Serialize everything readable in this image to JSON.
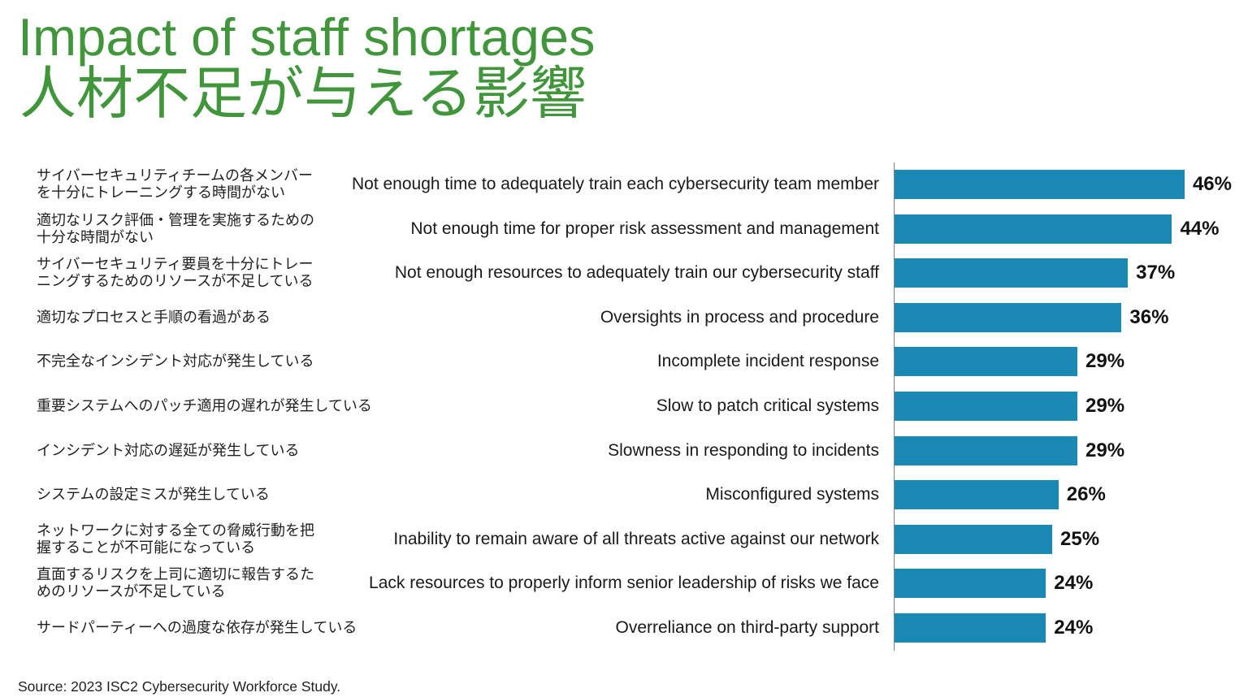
{
  "chart_data": {
    "type": "bar",
    "orientation": "horizontal",
    "title": "Impact of staff shortages",
    "subtitle": "人材不足が与える影響",
    "categories": [
      "Not enough time to adequately train each cybersecurity team member",
      "Not enough time for proper risk assessment and management",
      "Not enough resources to adequately train our cybersecurity staff",
      "Oversights in process and procedure",
      "Incomplete incident response",
      "Slow to patch critical systems",
      "Slowness in responding to incidents",
      "Misconfigured systems",
      "Inability to remain aware of all threats active against our network",
      "Lack resources to properly inform senior leadership of risks we face",
      "Overreliance on third-party support"
    ],
    "categories_ja": [
      [
        "サイバーセキュリティチームの各メンバー",
        "を十分にトレーニングする時間がない"
      ],
      [
        "適切なリスク評価・管理を実施するための",
        "十分な時間がない"
      ],
      [
        "サイバーセキュリティ要員を十分にトレー",
        "ニングするためのリソースが不足している"
      ],
      [
        "適切なプロセスと手順の看過がある"
      ],
      [
        "不完全なインシデント対応が発生している"
      ],
      [
        "重要システムへのパッチ適用の遅れが発生している"
      ],
      [
        "インシデント対応の遅延が発生している"
      ],
      [
        "システムの設定ミスが発生している"
      ],
      [
        "ネットワークに対する全ての脅威行動を把",
        "握することが不可能になっている"
      ],
      [
        "直面するリスクを上司に適切に報告するた",
        "めのリソースが不足している"
      ],
      [
        "サードパーティーへの過度な依存が発生している"
      ]
    ],
    "values": [
      46,
      44,
      37,
      36,
      29,
      29,
      29,
      26,
      25,
      24,
      24
    ],
    "unit": "%",
    "xlim": [
      0,
      50
    ],
    "grid": false,
    "legend": "none",
    "source": "Source: 2023 ISC2 Cybersecurity Workforce Study."
  },
  "colors": {
    "title": "#41963c",
    "bar": "#1a8ab5",
    "text": "#1a1a1a",
    "axis": "#808080"
  }
}
